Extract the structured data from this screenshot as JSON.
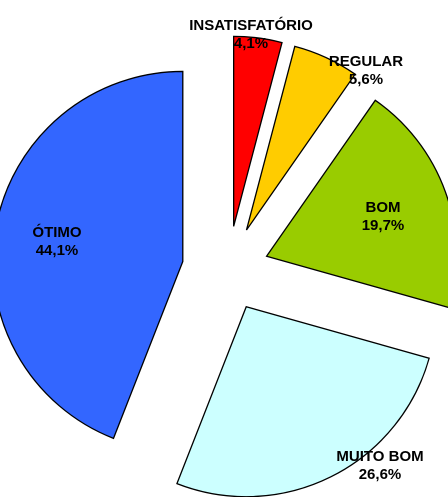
{
  "chart_data": {
    "type": "pie",
    "exploded": true,
    "slices": [
      {
        "label": "INSATISFATÓRIO",
        "pct_text": "4,1%",
        "value": 4.1,
        "color": "#ff0000"
      },
      {
        "label": "REGULAR",
        "pct_text": "5,6%",
        "value": 5.6,
        "color": "#ffcc00"
      },
      {
        "label": "BOM",
        "pct_text": "19,7%",
        "value": 19.7,
        "color": "#99cc00"
      },
      {
        "label": "MUITO BOM",
        "pct_text": "26,6%",
        "value": 26.6,
        "color": "#ccffff"
      },
      {
        "label": "ÓTIMO",
        "pct_text": "44,1%",
        "value": 44.1,
        "color": "#3366ff"
      }
    ],
    "legend": "none"
  }
}
